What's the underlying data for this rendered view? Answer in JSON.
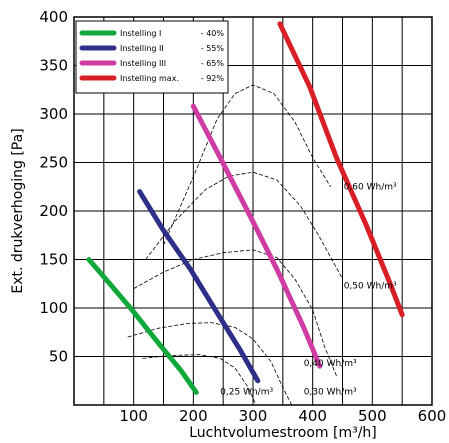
{
  "chart_data": {
    "type": "line",
    "title": "",
    "xlabel": "Luchtvolumestroom [m³/h]",
    "ylabel": "Ext. drukverhoging [Pa]",
    "xlim": [
      0,
      600
    ],
    "ylim": [
      0,
      400
    ],
    "x_major_ticks": [
      100,
      200,
      300,
      400,
      500,
      600
    ],
    "x_minor_gridlines": [
      50,
      150,
      250,
      350,
      450,
      550
    ],
    "y_ticks": [
      50,
      100,
      150,
      200,
      250,
      300,
      350,
      400
    ],
    "grid": true,
    "legend_position": "top-left",
    "series": [
      {
        "name": "Instelling I",
        "percent": "- 40%",
        "color": "#11a83b",
        "points": [
          [
            25,
            150
          ],
          [
            60,
            125
          ],
          [
            100,
            96
          ],
          [
            140,
            65
          ],
          [
            180,
            35
          ],
          [
            205,
            13
          ]
        ]
      },
      {
        "name": "Instelling II",
        "percent": "- 55%",
        "color": "#2e2f88",
        "points": [
          [
            110,
            220
          ],
          [
            150,
            180
          ],
          [
            195,
            140
          ],
          [
            240,
            95
          ],
          [
            280,
            55
          ],
          [
            308,
            25
          ]
        ]
      },
      {
        "name": "Instelling III",
        "percent": "- 65%",
        "color": "#cf3ca4",
        "points": [
          [
            200,
            308
          ],
          [
            245,
            255
          ],
          [
            295,
            195
          ],
          [
            340,
            140
          ],
          [
            385,
            80
          ],
          [
            412,
            40
          ]
        ]
      },
      {
        "name": "Instelling max.",
        "percent": "- 92%",
        "color": "#d91f26",
        "points": [
          [
            345,
            393
          ],
          [
            395,
            328
          ],
          [
            440,
            255
          ],
          [
            490,
            185
          ],
          [
            530,
            125
          ],
          [
            550,
            93
          ]
        ]
      }
    ],
    "power_curves": [
      {
        "label": "0,60 Wh/m³",
        "points": [
          [
            150,
            165
          ],
          [
            200,
            235
          ],
          [
            240,
            295
          ],
          [
            270,
            321
          ],
          [
            300,
            330
          ],
          [
            335,
            321
          ],
          [
            370,
            292
          ],
          [
            400,
            255
          ],
          [
            430,
            225
          ]
        ]
      },
      {
        "label": "0,50 Wh/m³",
        "points": [
          [
            120,
            150
          ],
          [
            170,
            190
          ],
          [
            220,
            222
          ],
          [
            260,
            236
          ],
          [
            300,
            240
          ],
          [
            340,
            232
          ],
          [
            380,
            205
          ],
          [
            410,
            175
          ],
          [
            450,
            130
          ]
        ]
      },
      {
        "label": "0,40 Wh/m³",
        "points": [
          [
            100,
            120
          ],
          [
            150,
            137
          ],
          [
            200,
            150
          ],
          [
            250,
            157
          ],
          [
            300,
            160
          ],
          [
            340,
            152
          ],
          [
            370,
            130
          ],
          [
            400,
            98
          ],
          [
            420,
            60
          ],
          [
            440,
            30
          ]
        ]
      },
      {
        "label": "0,30 Wh/m³",
        "points": [
          [
            90,
            70
          ],
          [
            140,
            79
          ],
          [
            190,
            84
          ],
          [
            230,
            85
          ],
          [
            270,
            80
          ],
          [
            300,
            68
          ],
          [
            330,
            45
          ],
          [
            350,
            18
          ],
          [
            365,
            0
          ]
        ]
      },
      {
        "label": "0,25 Wh/m³",
        "points": [
          [
            115,
            48
          ],
          [
            160,
            51
          ],
          [
            210,
            52
          ],
          [
            245,
            48
          ],
          [
            270,
            38
          ],
          [
            292,
            18
          ],
          [
            305,
            0
          ]
        ]
      }
    ],
    "curve_labels": [
      {
        "text": "0,60 Wh/m³",
        "x": 452,
        "y": 222
      },
      {
        "text": "0,50 Wh/m³",
        "x": 452,
        "y": 120
      },
      {
        "text": "0,40 Wh/m³",
        "x": 385,
        "y": 40
      },
      {
        "text": "0,30 Wh/m³",
        "x": 385,
        "y": 11
      },
      {
        "text": "0,25 Wh/m³",
        "x": 245,
        "y": 11
      }
    ]
  }
}
